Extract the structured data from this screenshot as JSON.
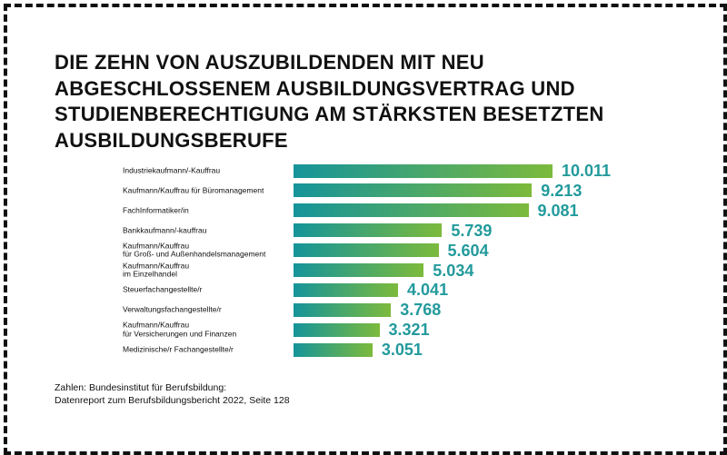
{
  "chart_data": {
    "type": "bar",
    "orientation": "horizontal",
    "title": "DIE ZEHN VON AUSZUBILDENDEN MIT NEU ABGESCHLOSSENEM AUSBILDUNGSVERTRAG UND STUDIENBERECHTIGUNG AM STÄRKSTEN BESETZTEN AUSBILDUNGSBERUFE",
    "categories": [
      "Industriekaufmann/-Kauffrau",
      "Kaufmann/Kauffrau für Büromanagement",
      "FachInformatiker/in",
      "Bankkaufmann/-kauffrau",
      "Kaufmann/Kauffrau\nfür Groß- und Außenhandelsmanagement",
      "Kaufmann/Kauffrau\nim Einzelhandel",
      "Steuerfachangestellte/r",
      "Verwaltungsfachangestellte/r",
      "Kaufmann/Kauffrau\nfür Versicherungen und Finanzen",
      "Medizinische/r Fachangestellte/r"
    ],
    "values": [
      10011,
      9213,
      9081,
      5739,
      5604,
      5034,
      4041,
      3768,
      3321,
      3051
    ],
    "value_labels": [
      "10.011",
      "9.213",
      "9.081",
      "5.739",
      "5.604",
      "5.034",
      "4.041",
      "3.768",
      "3.321",
      "3.051"
    ],
    "color_start": "#15949a",
    "color_end": "#7cba3c",
    "label_color": "#239a9c",
    "source": "Zahlen: Bundesinstitut für Berufsbildung:\nDatenreport zum Berufsbildungsbericht 2022, Seite 128"
  }
}
